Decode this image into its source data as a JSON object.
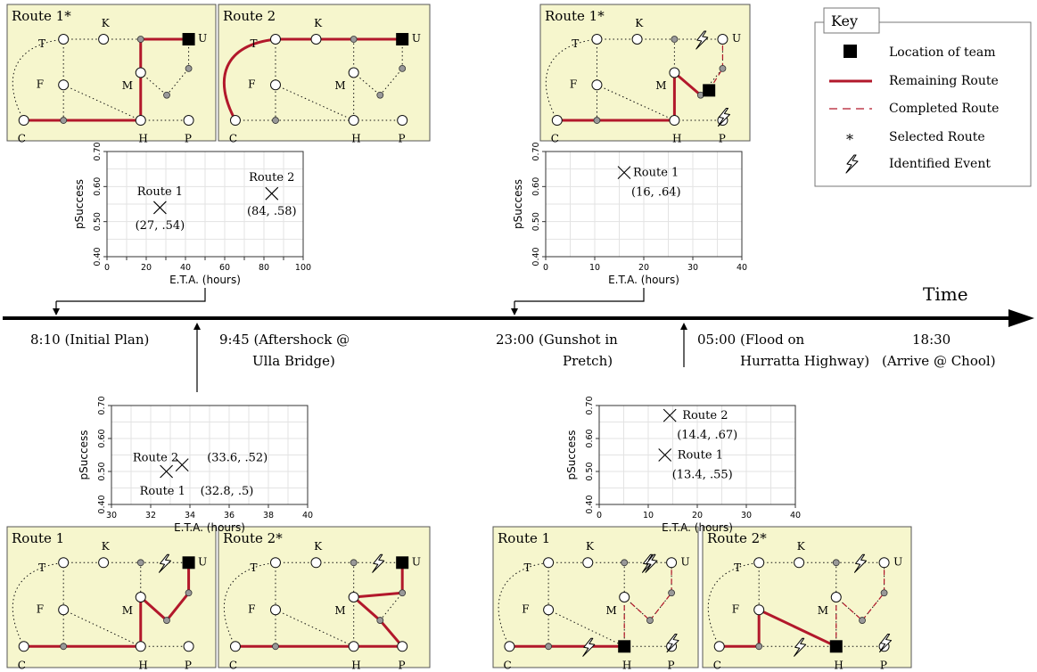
{
  "colors": {
    "panel_bg": "#f6f6cd",
    "remaining_route": "#b2182b",
    "completed_route": "#b2182b",
    "team": "#000000",
    "small_node": "#999999"
  },
  "timeline": {
    "label": "Time",
    "events": [
      {
        "t": "8:10",
        "text1": "8:10 (Initial Plan)",
        "text2": ""
      },
      {
        "t": "9:45",
        "text1": "9:45 (Aftershock @",
        "text2": "Ulla Bridge)"
      },
      {
        "t": "23:00",
        "text1": "23:00 (Gunshot in",
        "text2": "Pretch)"
      },
      {
        "t": "05:00",
        "text1": "05:00 (Flood on",
        "text2": "Hurratta Highway)"
      },
      {
        "t": "18:30",
        "text1": "18:30",
        "text2": "(Arrive @ Chool)"
      }
    ]
  },
  "key": {
    "title": "Key",
    "items": [
      {
        "label": "Location of team",
        "icon": "team-square-icon"
      },
      {
        "label": "Remaining Route",
        "icon": "solid-red-line-icon"
      },
      {
        "label": "Completed Route",
        "icon": "dashed-red-line-icon"
      },
      {
        "label": "Selected Route",
        "icon": "asterisk-icon",
        "symbol": "*"
      },
      {
        "label": "Identified Event",
        "icon": "lightning-icon"
      }
    ]
  },
  "node_labels": {
    "T": "T",
    "K": "K",
    "U": "U",
    "F": "F",
    "M": "M",
    "C": "C",
    "H": "H",
    "P": "P"
  },
  "panels": [
    {
      "title": "Route 1*",
      "remaining": [
        [
          "C",
          "c1"
        ],
        [
          "c1",
          "H"
        ],
        [
          "H",
          "M"
        ],
        [
          "M",
          "k2"
        ],
        [
          "k2",
          "U"
        ]
      ],
      "completed": [],
      "team": "U",
      "events": []
    },
    {
      "title": "Route 2",
      "remaining": [
        [
          "C",
          "T"
        ],
        [
          "T",
          "K"
        ],
        [
          "K",
          "k2"
        ],
        [
          "k2",
          "U"
        ]
      ],
      "completed": [],
      "team": "U",
      "events": []
    },
    {
      "title": "Route 1*",
      "remaining": [
        [
          "C",
          "c1"
        ],
        [
          "c1",
          "H"
        ],
        [
          "H",
          "M"
        ],
        [
          "M",
          "m2"
        ],
        [
          "m2",
          "team"
        ]
      ],
      "completed": [
        [
          "team",
          "u2"
        ],
        [
          "u2",
          "U"
        ]
      ],
      "team": "team",
      "events": [
        "u_left",
        "p_right"
      ]
    },
    {
      "title": "Route 1",
      "remaining": [
        [
          "C",
          "c1"
        ],
        [
          "c1",
          "H"
        ],
        [
          "H",
          "M"
        ],
        [
          "M",
          "m2"
        ],
        [
          "m2",
          "u2"
        ],
        [
          "u2",
          "U"
        ]
      ],
      "completed": [],
      "team": "U",
      "events": [
        "k_right"
      ]
    },
    {
      "title": "Route 2*",
      "remaining": [
        [
          "C",
          "c1"
        ],
        [
          "c1",
          "H"
        ],
        [
          "H",
          "P"
        ],
        [
          "P",
          "m2"
        ],
        [
          "m2",
          "M"
        ],
        [
          "M",
          "u2"
        ],
        [
          "u2",
          "U"
        ]
      ],
      "completed": [],
      "team": "U",
      "events": [
        "k_right"
      ]
    },
    {
      "title": "Route 1",
      "remaining": [
        [
          "C",
          "c1"
        ],
        [
          "c1",
          "H"
        ]
      ],
      "completed": [
        [
          "H",
          "M"
        ],
        [
          "M",
          "m2"
        ],
        [
          "m2",
          "u2"
        ],
        [
          "u2",
          "U"
        ]
      ],
      "team": "H",
      "events": [
        "k_right",
        "u_left",
        "c_mid",
        "p_right"
      ]
    },
    {
      "title": "Route 2*",
      "remaining": [
        [
          "C",
          "c1"
        ],
        [
          "c1",
          "F"
        ],
        [
          "F",
          "H"
        ]
      ],
      "completed": [
        [
          "H",
          "M"
        ],
        [
          "M",
          "m2"
        ],
        [
          "m2",
          "u2"
        ],
        [
          "u2",
          "U"
        ]
      ],
      "team": "H",
      "events": [
        "k_right",
        "c_mid",
        "p_right"
      ]
    }
  ],
  "charts": [
    {
      "chart_data": {
        "type": "scatter",
        "xlabel": "E.T.A. (hours)",
        "ylabel": "pSuccess",
        "xlim": [
          0,
          100
        ],
        "ylim": [
          0.4,
          0.7
        ],
        "xticks": [
          "0",
          "10",
          "20",
          "30",
          "40",
          "50",
          "60",
          "70",
          "80",
          "90",
          "100"
        ],
        "xticks_labeled": [
          "0",
          "20",
          "40",
          "60",
          "80",
          "100"
        ],
        "yticks": [
          "0.40",
          "0.50",
          "0.60",
          "0.70"
        ],
        "grid": true,
        "points": [
          {
            "name": "Route 1",
            "x": 27,
            "y": 0.54,
            "label": "(27, .54)"
          },
          {
            "name": "Route 2",
            "x": 84,
            "y": 0.58,
            "label": "(84, .58)"
          }
        ]
      }
    },
    {
      "chart_data": {
        "type": "scatter",
        "xlabel": "E.T.A. (hours)",
        "ylabel": "pSuccess",
        "xlim": [
          0,
          40
        ],
        "ylim": [
          0.4,
          0.7
        ],
        "xticks_labeled": [
          "0",
          "10",
          "20",
          "30",
          "40"
        ],
        "yticks": [
          "0.40",
          "0.50",
          "0.60",
          "0.70"
        ],
        "grid": true,
        "points": [
          {
            "name": "Route 1",
            "x": 16,
            "y": 0.64,
            "label": "(16, .64)"
          }
        ]
      }
    },
    {
      "chart_data": {
        "type": "scatter",
        "xlabel": "E.T.A. (hours)",
        "ylabel": "pSuccess",
        "xlim": [
          30,
          40
        ],
        "ylim": [
          0.4,
          0.7
        ],
        "xticks_labeled": [
          "30",
          "32",
          "34",
          "36",
          "38",
          "40"
        ],
        "yticks": [
          "0.40",
          "0.50",
          "0.60",
          "0.70"
        ],
        "grid": true,
        "points": [
          {
            "name": "Route 1",
            "x": 32.8,
            "y": 0.5,
            "label": "(32.8, .5)"
          },
          {
            "name": "Route 2",
            "x": 33.6,
            "y": 0.52,
            "label": "(33.6, .52)"
          }
        ]
      }
    },
    {
      "chart_data": {
        "type": "scatter",
        "xlabel": "E.T.A. (hours)",
        "ylabel": "pSuccess",
        "xlim": [
          0,
          40
        ],
        "ylim": [
          0.4,
          0.7
        ],
        "xticks_labeled": [
          "0",
          "10",
          "20",
          "30",
          "40"
        ],
        "yticks": [
          "0.40",
          "0.50",
          "0.60",
          "0.70"
        ],
        "grid": true,
        "points": [
          {
            "name": "Route 2",
            "x": 14.4,
            "y": 0.67,
            "label": "(14.4, .67)"
          },
          {
            "name": "Route 1",
            "x": 13.4,
            "y": 0.55,
            "label": "(13.4, .55)"
          }
        ]
      }
    }
  ]
}
